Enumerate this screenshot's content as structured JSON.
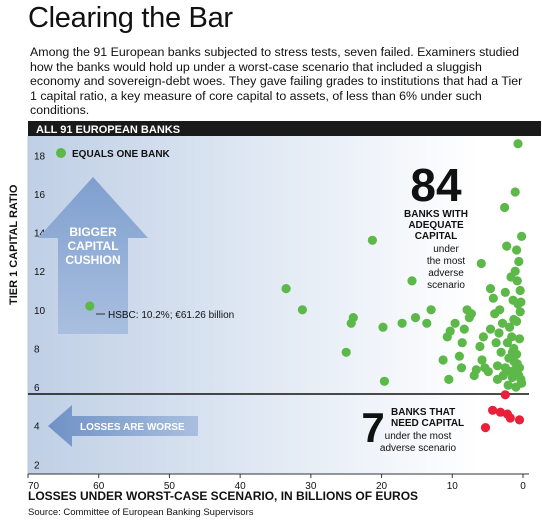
{
  "title": "Clearing the Bar",
  "intro": "Among the 91 European banks subjected to stress tests, seven failed. Examiners studied how the banks would hold up under a worst-case scenario that included a sluggish economy and sovereign-debt woes. They gave failing grades to institutions that had a Tier 1 capital ratio, a key measure of core capital to assets, of less than 6% under such conditions.",
  "source": "Source: Committee of European Banking Supervisors",
  "colors": {
    "pass": "#5cb848",
    "fail": "#e8203a",
    "header_bg": "#1a1a1a",
    "arrow": "#7f9fcf"
  },
  "chart_data": {
    "type": "scatter",
    "header": "ALL 91 EUROPEAN BANKS",
    "xlabel": "LOSSES UNDER WORST-CASE SCENARIO, IN BILLIONS OF EUROS",
    "ylabel": "TIER 1 CAPITAL RATIO",
    "xlim": [
      70,
      0
    ],
    "ylim": [
      1.5,
      19
    ],
    "x_ticks": [
      "70",
      "60",
      "50",
      "40",
      "30",
      "20",
      "10",
      "0"
    ],
    "y_ticks": [
      "2",
      "4",
      "6",
      "8",
      "10",
      "12",
      "14",
      "16",
      "18"
    ],
    "threshold": 6,
    "legend": "EQUALS ONE BANK",
    "arrow_up_label": [
      "BIGGER",
      "CAPITAL",
      "CUSHION"
    ],
    "arrow_left_label": "LOSSES ARE WORSE",
    "annotation_hsbc": "HSBC: 10.2%; €61.26 billion",
    "pass_count": "84",
    "pass_text": [
      "BANKS WITH",
      "ADEQUATE",
      "CAPITAL"
    ],
    "pass_subtext": [
      "under",
      "the most",
      "adverse",
      "scenario"
    ],
    "fail_count": "7",
    "fail_text": [
      "BANKS THAT",
      "NEED CAPITAL"
    ],
    "fail_subtext": [
      "under the most",
      "adverse scenario"
    ],
    "series": [
      {
        "name": "Adequate capital",
        "points": [
          [
            61.26,
            10.2
          ],
          [
            33.5,
            11.1
          ],
          [
            31.2,
            10.0
          ],
          [
            25.0,
            7.8
          ],
          [
            24.3,
            9.3
          ],
          [
            24.0,
            9.6
          ],
          [
            21.3,
            13.6
          ],
          [
            19.6,
            6.3
          ],
          [
            19.8,
            9.1
          ],
          [
            17.1,
            9.3
          ],
          [
            15.7,
            11.5
          ],
          [
            15.2,
            9.6
          ],
          [
            13.6,
            9.3
          ],
          [
            13.0,
            10.0
          ],
          [
            11.3,
            7.4
          ],
          [
            10.7,
            8.6
          ],
          [
            10.3,
            8.9
          ],
          [
            10.5,
            6.4
          ],
          [
            9.6,
            9.3
          ],
          [
            9.0,
            7.6
          ],
          [
            8.7,
            7.0
          ],
          [
            8.6,
            8.3
          ],
          [
            8.3,
            9.0
          ],
          [
            7.9,
            10.0
          ],
          [
            7.6,
            9.6
          ],
          [
            7.3,
            9.8
          ],
          [
            6.9,
            6.6
          ],
          [
            6.6,
            6.9
          ],
          [
            6.1,
            8.1
          ],
          [
            5.9,
            12.4
          ],
          [
            5.8,
            7.4
          ],
          [
            5.6,
            8.6
          ],
          [
            5.4,
            7.0
          ],
          [
            4.9,
            6.8
          ],
          [
            4.6,
            9.0
          ],
          [
            4.6,
            11.1
          ],
          [
            4.2,
            10.6
          ],
          [
            4.0,
            9.8
          ],
          [
            3.8,
            8.3
          ],
          [
            3.6,
            7.1
          ],
          [
            3.6,
            6.4
          ],
          [
            3.4,
            8.8
          ],
          [
            3.3,
            10.0
          ],
          [
            3.1,
            7.8
          ],
          [
            2.9,
            9.3
          ],
          [
            2.8,
            6.6
          ],
          [
            2.6,
            15.3
          ],
          [
            2.5,
            7.0
          ],
          [
            2.5,
            10.9
          ],
          [
            2.3,
            13.3
          ],
          [
            2.2,
            8.3
          ],
          [
            2.1,
            6.1
          ],
          [
            2.0,
            7.5
          ],
          [
            1.9,
            9.1
          ],
          [
            1.8,
            6.8
          ],
          [
            1.7,
            11.7
          ],
          [
            1.6,
            8.6
          ],
          [
            1.5,
            6.5
          ],
          [
            1.5,
            7.8
          ],
          [
            1.4,
            10.5
          ],
          [
            1.3,
            9.5
          ],
          [
            1.3,
            8.0
          ],
          [
            1.2,
            7.3
          ],
          [
            1.1,
            12.0
          ],
          [
            1.1,
            6.9
          ],
          [
            1.1,
            16.1
          ],
          [
            1.0,
            6.0
          ],
          [
            0.9,
            13.1
          ],
          [
            0.9,
            7.7
          ],
          [
            0.9,
            9.4
          ],
          [
            0.8,
            11.5
          ],
          [
            0.8,
            7.2
          ],
          [
            0.7,
            10.3
          ],
          [
            0.7,
            18.6
          ],
          [
            0.6,
            6.6
          ],
          [
            0.6,
            12.5
          ],
          [
            0.5,
            8.5
          ],
          [
            0.5,
            7.0
          ],
          [
            0.4,
            9.9
          ],
          [
            0.4,
            11.0
          ],
          [
            0.3,
            6.4
          ],
          [
            0.3,
            10.4
          ],
          [
            0.2,
            13.8
          ],
          [
            0.2,
            6.2
          ]
        ]
      },
      {
        "name": "Need capital",
        "points": [
          [
            5.3,
            3.9
          ],
          [
            4.3,
            4.8
          ],
          [
            3.2,
            4.7
          ],
          [
            2.5,
            5.6
          ],
          [
            2.2,
            4.6
          ],
          [
            1.8,
            4.4
          ],
          [
            0.5,
            4.3
          ]
        ]
      }
    ]
  }
}
